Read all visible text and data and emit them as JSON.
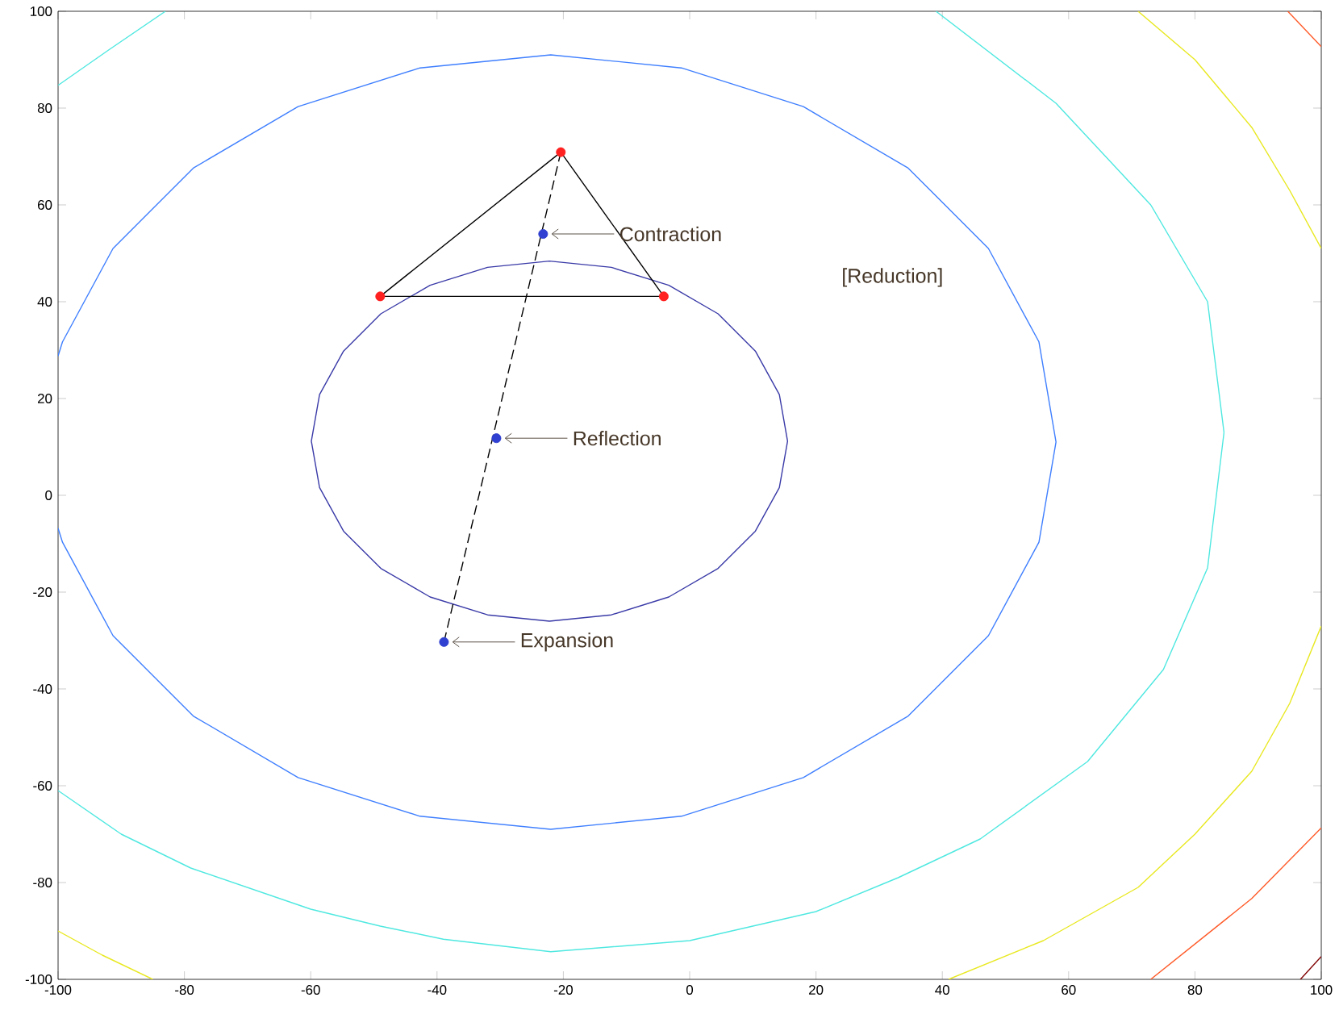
{
  "chart_data": {
    "type": "line",
    "xlim": [
      -100,
      100
    ],
    "ylim": [
      -100,
      100
    ],
    "xticks": [
      -100,
      -80,
      -60,
      -40,
      -20,
      0,
      20,
      40,
      60,
      80,
      100
    ],
    "yticks": [
      -100,
      -80,
      -60,
      -40,
      -20,
      0,
      20,
      40,
      60,
      80,
      100
    ],
    "series": [
      {
        "color": "#3a3aa8",
        "x": [
          15.5,
          14.2,
          10.4,
          4.5,
          -3.3,
          -12.4,
          -22.2,
          -32,
          -41.1,
          -48.9,
          -54.8,
          -58.6,
          -59.9,
          -58.6,
          -54.8,
          -48.9,
          -41.1,
          -32,
          -22.2,
          -12.4,
          -3.3,
          4.5,
          10.4,
          14.2,
          15.5,
          14.2
        ],
        "values": [
          11.2,
          20.8,
          29.8,
          37.5,
          43.4,
          47.1,
          48.4,
          47.1,
          43.4,
          37.5,
          29.8,
          20.8,
          11.2,
          1.6,
          -7.4,
          -15.1,
          -21,
          -24.7,
          -26,
          -24.7,
          -21,
          -15.1,
          -7.4,
          1.6,
          11.2,
          20.8
        ]
      },
      {
        "color": "#3f7fff",
        "x": [
          -100,
          -99.3,
          -91.3,
          -78.6,
          -62,
          -42.7,
          -22,
          -1.3,
          18,
          34.6,
          47.3,
          55.3,
          58,
          55.3,
          47.3,
          34.6,
          18,
          -1.3,
          -22,
          -42.7,
          -62,
          -78.6,
          -91.3,
          -99.3,
          -100
        ],
        "values": [
          -6.8,
          -9.7,
          -29,
          -45.6,
          -58.3,
          -66.3,
          -69,
          -66.3,
          -58.3,
          -45.6,
          -29,
          -9.7,
          11,
          31.7,
          51,
          67.6,
          80.3,
          88.3,
          91,
          88.3,
          80.3,
          67.6,
          51,
          31.7,
          28.8
        ]
      },
      {
        "color": "#4fe8e0",
        "x": [
          -100,
          -90,
          -79,
          -60,
          -49,
          -39,
          -22,
          0,
          20,
          33,
          46,
          63,
          75,
          82,
          84.6,
          82,
          73,
          58,
          39
        ],
        "values": [
          -61,
          -70,
          -77,
          -85.5,
          -89,
          -91.7,
          -94.3,
          -92,
          -86,
          -79,
          -71,
          -55,
          -36,
          -15,
          13,
          40,
          60,
          81,
          100
        ]
      },
      {
        "color": "#4fe8e0",
        "x": [
          -100,
          -92,
          -83
        ],
        "values": [
          84.7,
          92,
          100
        ]
      },
      {
        "color": "#e8e820",
        "x": [
          71,
          80,
          89,
          95,
          100
        ],
        "values": [
          100,
          90,
          76,
          63,
          51
        ]
      },
      {
        "color": "#e8e820",
        "x": [
          100,
          95,
          89,
          80,
          71,
          56,
          41
        ],
        "values": [
          -27,
          -43,
          -57,
          -70,
          -81,
          -92,
          -100
        ]
      },
      {
        "color": "#e8e820",
        "x": [
          -100,
          -93,
          -85
        ],
        "values": [
          -90,
          -95,
          -100
        ]
      },
      {
        "color": "#ff5a28",
        "x": [
          94.7,
          100
        ],
        "values": [
          100,
          92.7
        ]
      },
      {
        "color": "#ff5a28",
        "x": [
          100,
          89,
          73
        ],
        "values": [
          -68.7,
          -83.3,
          -100
        ]
      },
      {
        "color": "#800000",
        "x": [
          96.7,
          100
        ],
        "values": [
          -100,
          -95.3
        ]
      },
      {
        "color": "#000000",
        "x": [
          -49,
          -4.1,
          -20.4,
          -49,
          -30
        ],
        "values": [
          41.1,
          41.1,
          70.9,
          41.1,
          41.1
        ]
      },
      {
        "color": "#000000",
        "line_style": "dashed",
        "x": [
          -20.4,
          -38.9
        ],
        "values": [
          70.9,
          -30.3
        ]
      },
      {
        "type": "scatter",
        "marker": "circle",
        "color": "#ff2020",
        "x": [
          -20.4,
          -49,
          -4.1
        ],
        "values": [
          70.9,
          41.1,
          41.1
        ]
      },
      {
        "type": "scatter",
        "marker": "circle",
        "color": "#3040d0",
        "x": [
          -23.2,
          -30.6,
          -38.9
        ],
        "values": [
          54,
          11.8,
          -30.3
        ]
      }
    ],
    "annotations": [
      {
        "text": "Contraction",
        "x": -23.2,
        "y": 54
      },
      "[Reduction]",
      {
        "text": "Reflection",
        "x": -30.6,
        "y": 11.8
      },
      {
        "text": "Expansion",
        "x": -38.9,
        "y": -30.3
      }
    ]
  }
}
